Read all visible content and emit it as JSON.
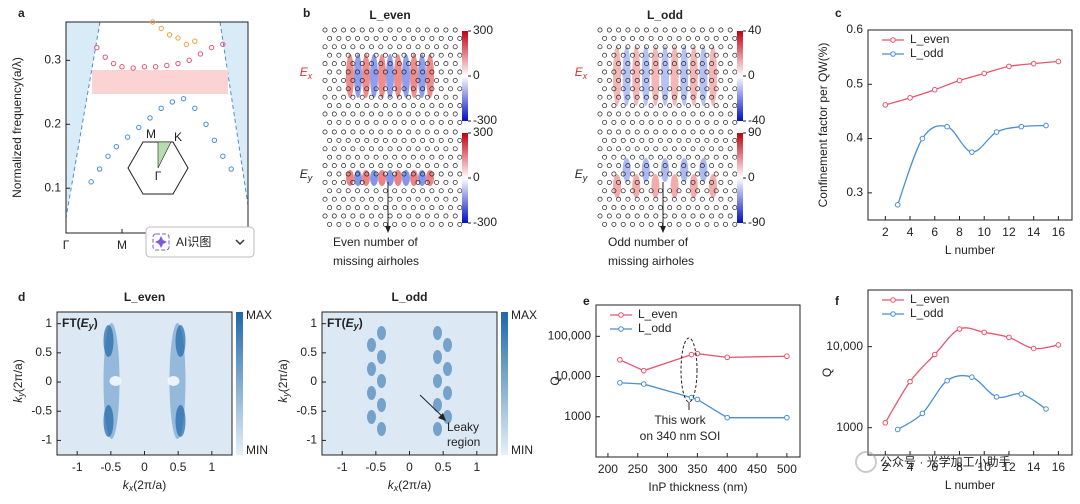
{
  "panel_labels": [
    "a",
    "b",
    "c",
    "d",
    "e",
    "f"
  ],
  "button": "AI识图",
  "watermark": "公众号 · 光学加工小助手",
  "chart_data": [
    {
      "type": "scatter",
      "ylabel": "Normalized frequency(a/λ)",
      "xlim": [
        0,
        3.25
      ],
      "xticks": [
        {
          "value": 0,
          "label": "Γ"
        },
        {
          "value": 1,
          "label": "M"
        }
      ],
      "ylim": [
        0.03,
        0.36
      ],
      "yticks": [
        0.1,
        0.2,
        0.3
      ],
      "inset_labels": [
        "M",
        "K",
        "Γ"
      ],
      "series": [
        {
          "color": "#4a8fd6",
          "x": [
            0.45,
            0.6,
            0.75,
            0.9,
            1.1,
            1.3,
            1.5,
            1.7,
            1.9,
            2.1,
            2.3,
            2.5,
            2.65,
            2.8,
            2.95
          ],
          "values": [
            0.11,
            0.13,
            0.15,
            0.165,
            0.18,
            0.195,
            0.21,
            0.225,
            0.235,
            0.24,
            0.225,
            0.2,
            0.175,
            0.15,
            0.13
          ]
        },
        {
          "color": "#e8546e",
          "x": [
            0.55,
            0.7,
            0.85,
            1.0,
            1.2,
            1.4,
            1.6,
            1.8,
            2.0,
            2.2,
            2.4,
            2.6,
            2.8
          ],
          "values": [
            0.32,
            0.305,
            0.295,
            0.29,
            0.288,
            0.29,
            0.29,
            0.292,
            0.295,
            0.3,
            0.31,
            0.32,
            0.325
          ]
        },
        {
          "color": "#f0a040",
          "x": [
            1.55,
            1.7,
            1.85,
            2.0,
            2.15,
            2.3
          ],
          "values": [
            0.36,
            0.35,
            0.34,
            0.335,
            0.325,
            0.33
          ]
        }
      ]
    },
    {
      "type": "field-map",
      "columns": [
        {
          "title": "L_even",
          "note": [
            "Even number of",
            "missing airholes"
          ],
          "maps": [
            {
              "symbol": "E",
              "sub": "x",
              "color": "#e0302a",
              "cbar_ticks": [
                300,
                0,
                -300
              ]
            },
            {
              "symbol": "E",
              "sub": "y",
              "color": "#222222",
              "cbar_ticks": [
                300,
                0,
                -300
              ]
            }
          ]
        },
        {
          "title": "L_odd",
          "note": [
            "Odd number of",
            "missing airholes"
          ],
          "maps": [
            {
              "symbol": "E",
              "sub": "x",
              "color": "#e0302a",
              "cbar_ticks": [
                40,
                0,
                -40
              ]
            },
            {
              "symbol": "E",
              "sub": "y",
              "color": "#222222",
              "cbar_ticks": [
                90,
                0,
                -90
              ]
            }
          ]
        }
      ]
    },
    {
      "type": "line",
      "smooth": true,
      "legend": "upper left",
      "xlabel": "L number",
      "ylabel": "Confinement factor per QW(%)",
      "xlim": [
        0.6,
        17.1
      ],
      "xticks": [
        2,
        4,
        6,
        8,
        10,
        12,
        14,
        16
      ],
      "ylim": [
        0.25,
        0.6
      ],
      "yticks": [
        0.3,
        0.4,
        0.5,
        0.6
      ],
      "series": [
        {
          "name": "L_even",
          "color": "#e8546e",
          "x": [
            2,
            4,
            6,
            8,
            10,
            12,
            14,
            16
          ],
          "values": [
            0.462,
            0.475,
            0.49,
            0.507,
            0.52,
            0.533,
            0.538,
            0.542
          ]
        },
        {
          "name": "L_odd",
          "color": "#4a8fd6",
          "x": [
            3,
            5,
            7,
            9,
            11,
            13,
            15
          ],
          "values": [
            0.278,
            0.4,
            0.422,
            0.375,
            0.412,
            0.422,
            0.424
          ]
        }
      ]
    },
    {
      "type": "heatmap",
      "xlabel": {
        "symbol": "k",
        "sub": "x",
        "unit": "(2π/a)"
      },
      "ylabel": {
        "symbol": "k",
        "sub": "y",
        "unit": "(2π/a)"
      },
      "xlim": [
        -1.3,
        1.3
      ],
      "xticks": [
        -1,
        -0.5,
        0,
        0.5,
        1
      ],
      "ylim": [
        -1.25,
        1.2
      ],
      "yticks": [
        -1,
        -0.5,
        0,
        0.5,
        1
      ],
      "panels": [
        {
          "title": "L_even",
          "label": {
            "prefix": "FT(",
            "symbol": "E",
            "sub": "y",
            "suffix": ")"
          },
          "cbar": [
            "MAX",
            "MIN"
          ]
        },
        {
          "title": "L_odd",
          "label": {
            "prefix": "FT(",
            "symbol": "E",
            "sub": "y",
            "suffix": ")"
          },
          "cbar": [
            "MAX",
            "MIN"
          ],
          "annotation": [
            "Leaky",
            "region"
          ]
        }
      ]
    },
    {
      "type": "line",
      "log": true,
      "smooth": false,
      "legend": "upper left",
      "xlabel": "InP thickness (nm)",
      "ylabel": "Q",
      "xlim": [
        180,
        522
      ],
      "xticks": [
        200,
        250,
        300,
        350,
        400,
        450,
        500
      ],
      "ylim": [
        100,
        600000
      ],
      "yticks": [
        1000,
        {
          "value": 10000,
          "label": "10,000"
        },
        {
          "value": 100000,
          "label": "100,000"
        }
      ],
      "annotation": [
        "This work",
        "on 340 nm SOI"
      ],
      "series": [
        {
          "name": "L_even",
          "color": "#e8546e",
          "x": [
            220,
            260,
            340,
            350,
            400,
            500
          ],
          "values": [
            26000,
            14000,
            35000,
            37000,
            30000,
            32000
          ]
        },
        {
          "name": "L_odd",
          "color": "#4a8fd6",
          "x": [
            220,
            260,
            340,
            350,
            400,
            500
          ],
          "values": [
            7000,
            6500,
            3000,
            2700,
            950,
            950
          ]
        }
      ]
    },
    {
      "type": "line",
      "log": true,
      "smooth": true,
      "legend": "upper left",
      "xlabel": "L number",
      "ylabel": "Q",
      "xlim": [
        0.6,
        17.1
      ],
      "xticks": [
        2,
        4,
        6,
        8,
        10,
        12,
        14,
        16
      ],
      "ylim": [
        460,
        50000
      ],
      "yticks": [
        1000,
        {
          "value": 10000,
          "label": "10,000"
        }
      ],
      "series": [
        {
          "name": "L_even",
          "color": "#e8546e",
          "x": [
            2,
            4,
            6,
            8,
            10,
            12,
            14,
            16
          ],
          "values": [
            1150,
            3700,
            8000,
            16500,
            15000,
            13000,
            9500,
            10500
          ]
        },
        {
          "name": "L_odd",
          "color": "#4a8fd6",
          "x": [
            3,
            5,
            7,
            9,
            11,
            13,
            15
          ],
          "values": [
            950,
            1500,
            3800,
            4200,
            2400,
            2600,
            1700
          ]
        }
      ]
    }
  ]
}
